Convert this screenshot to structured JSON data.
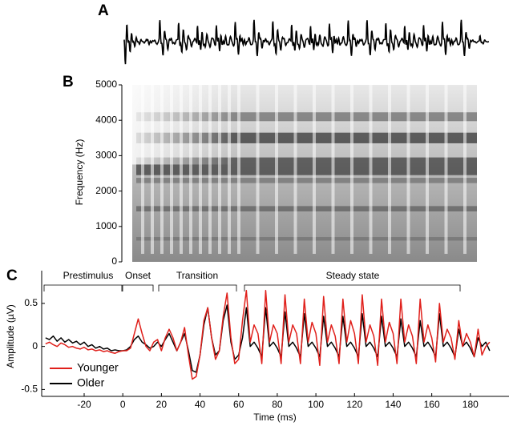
{
  "chart_data": [
    {
      "type": "waveform",
      "label": "A"
    },
    {
      "type": "spectrogram",
      "label": "B",
      "ylabel": "Frequency (Hz)",
      "ylim": [
        0,
        5000
      ],
      "yticks": [
        0,
        1000,
        2000,
        3000,
        4000,
        5000
      ]
    },
    {
      "type": "line",
      "label": "C",
      "xlabel": "Time (ms)",
      "ylabel": "Amplitude (µV)",
      "xlim": [
        -42,
        200
      ],
      "ylim": [
        -0.58,
        0.88
      ],
      "xticks": [
        -20,
        0,
        20,
        40,
        60,
        80,
        100,
        120,
        140,
        160,
        180
      ],
      "yticks": [
        -0.5,
        0,
        0.5
      ],
      "legend": "lower left",
      "annotations": [
        "Prestimulus",
        "Onset",
        "Transition",
        "Steady state"
      ],
      "x": [
        -40,
        -38,
        -36,
        -34,
        -32,
        -30,
        -28,
        -26,
        -24,
        -22,
        -20,
        -18,
        -16,
        -14,
        -12,
        -10,
        -8,
        -6,
        -4,
        -2,
        0,
        2,
        4,
        6,
        8,
        10,
        12,
        14,
        16,
        18,
        20,
        22,
        24,
        26,
        28,
        30,
        32,
        34,
        36,
        38,
        40,
        42,
        44,
        46,
        48,
        50,
        52,
        54,
        56,
        58,
        60,
        62,
        64,
        66,
        68,
        70,
        72,
        74,
        76,
        78,
        80,
        82,
        84,
        86,
        88,
        90,
        92,
        94,
        96,
        98,
        100,
        102,
        104,
        106,
        108,
        110,
        112,
        114,
        116,
        118,
        120,
        122,
        124,
        126,
        128,
        130,
        132,
        134,
        136,
        138,
        140,
        142,
        144,
        146,
        148,
        150,
        152,
        154,
        156,
        158,
        160,
        162,
        164,
        166,
        168,
        170,
        172,
        174,
        176,
        178,
        180,
        182,
        184,
        186,
        188,
        190
      ],
      "series": [
        {
          "name": "Younger",
          "color": "#e0201b",
          "values": [
            0.03,
            0.05,
            0.02,
            0.0,
            0.04,
            0.02,
            -0.01,
            0.0,
            -0.02,
            -0.03,
            -0.01,
            -0.04,
            -0.03,
            -0.05,
            -0.04,
            -0.06,
            -0.05,
            -0.07,
            -0.08,
            -0.06,
            -0.05,
            -0.05,
            -0.02,
            0.15,
            0.32,
            0.15,
            0.0,
            -0.05,
            0.05,
            0.08,
            -0.05,
            0.1,
            0.2,
            0.1,
            -0.05,
            0.05,
            0.22,
            -0.1,
            -0.38,
            -0.35,
            -0.1,
            0.3,
            0.45,
            0.1,
            -0.15,
            -0.05,
            0.35,
            0.62,
            0.1,
            -0.2,
            -0.15,
            0.3,
            0.65,
            0.05,
            0.25,
            0.15,
            -0.2,
            0.65,
            0.05,
            0.25,
            0.15,
            -0.2,
            0.6,
            0.05,
            0.25,
            0.15,
            -0.2,
            0.55,
            0.05,
            0.28,
            0.15,
            -0.22,
            0.58,
            0.05,
            0.25,
            0.12,
            -0.2,
            0.55,
            0.05,
            0.3,
            0.15,
            -0.2,
            0.6,
            0.05,
            0.25,
            0.12,
            -0.22,
            0.55,
            0.05,
            0.28,
            0.15,
            -0.2,
            0.55,
            0.05,
            0.25,
            0.12,
            -0.2,
            0.55,
            0.05,
            0.25,
            0.1,
            -0.18,
            0.5,
            0.05,
            0.2,
            0.1,
            -0.15,
            0.3,
            0.0,
            0.15,
            0.05,
            -0.12,
            0.2,
            -0.1,
            0.0,
            0.05
          ]
        },
        {
          "name": "Older",
          "color": "#000000",
          "values": [
            0.1,
            0.08,
            0.12,
            0.06,
            0.1,
            0.05,
            0.08,
            0.04,
            0.06,
            0.02,
            0.05,
            0.0,
            0.02,
            -0.02,
            0.0,
            -0.03,
            -0.02,
            -0.05,
            -0.04,
            -0.05,
            -0.05,
            -0.04,
            0.0,
            0.08,
            0.12,
            0.05,
            0.02,
            -0.02,
            0.0,
            0.05,
            0.0,
            0.08,
            0.15,
            0.05,
            -0.05,
            0.05,
            0.15,
            -0.05,
            -0.28,
            -0.3,
            -0.1,
            0.25,
            0.45,
            0.1,
            -0.1,
            -0.05,
            0.3,
            0.48,
            0.05,
            -0.15,
            -0.1,
            0.1,
            0.45,
            0.0,
            0.05,
            -0.02,
            -0.12,
            0.45,
            0.0,
            0.05,
            -0.02,
            -0.12,
            0.4,
            0.0,
            0.05,
            -0.02,
            -0.12,
            0.38,
            0.0,
            0.05,
            -0.02,
            -0.12,
            0.35,
            0.0,
            0.05,
            -0.02,
            -0.12,
            0.35,
            0.0,
            0.05,
            -0.02,
            -0.12,
            0.38,
            0.0,
            0.05,
            -0.02,
            -0.12,
            0.35,
            0.0,
            0.05,
            -0.02,
            -0.12,
            0.32,
            0.0,
            0.05,
            -0.02,
            -0.12,
            0.3,
            0.0,
            0.05,
            -0.02,
            -0.12,
            0.38,
            0.0,
            0.05,
            -0.02,
            -0.12,
            0.2,
            0.0,
            0.05,
            -0.02,
            -0.12,
            0.1,
            0.0,
            0.05,
            -0.05
          ]
        }
      ]
    }
  ]
}
